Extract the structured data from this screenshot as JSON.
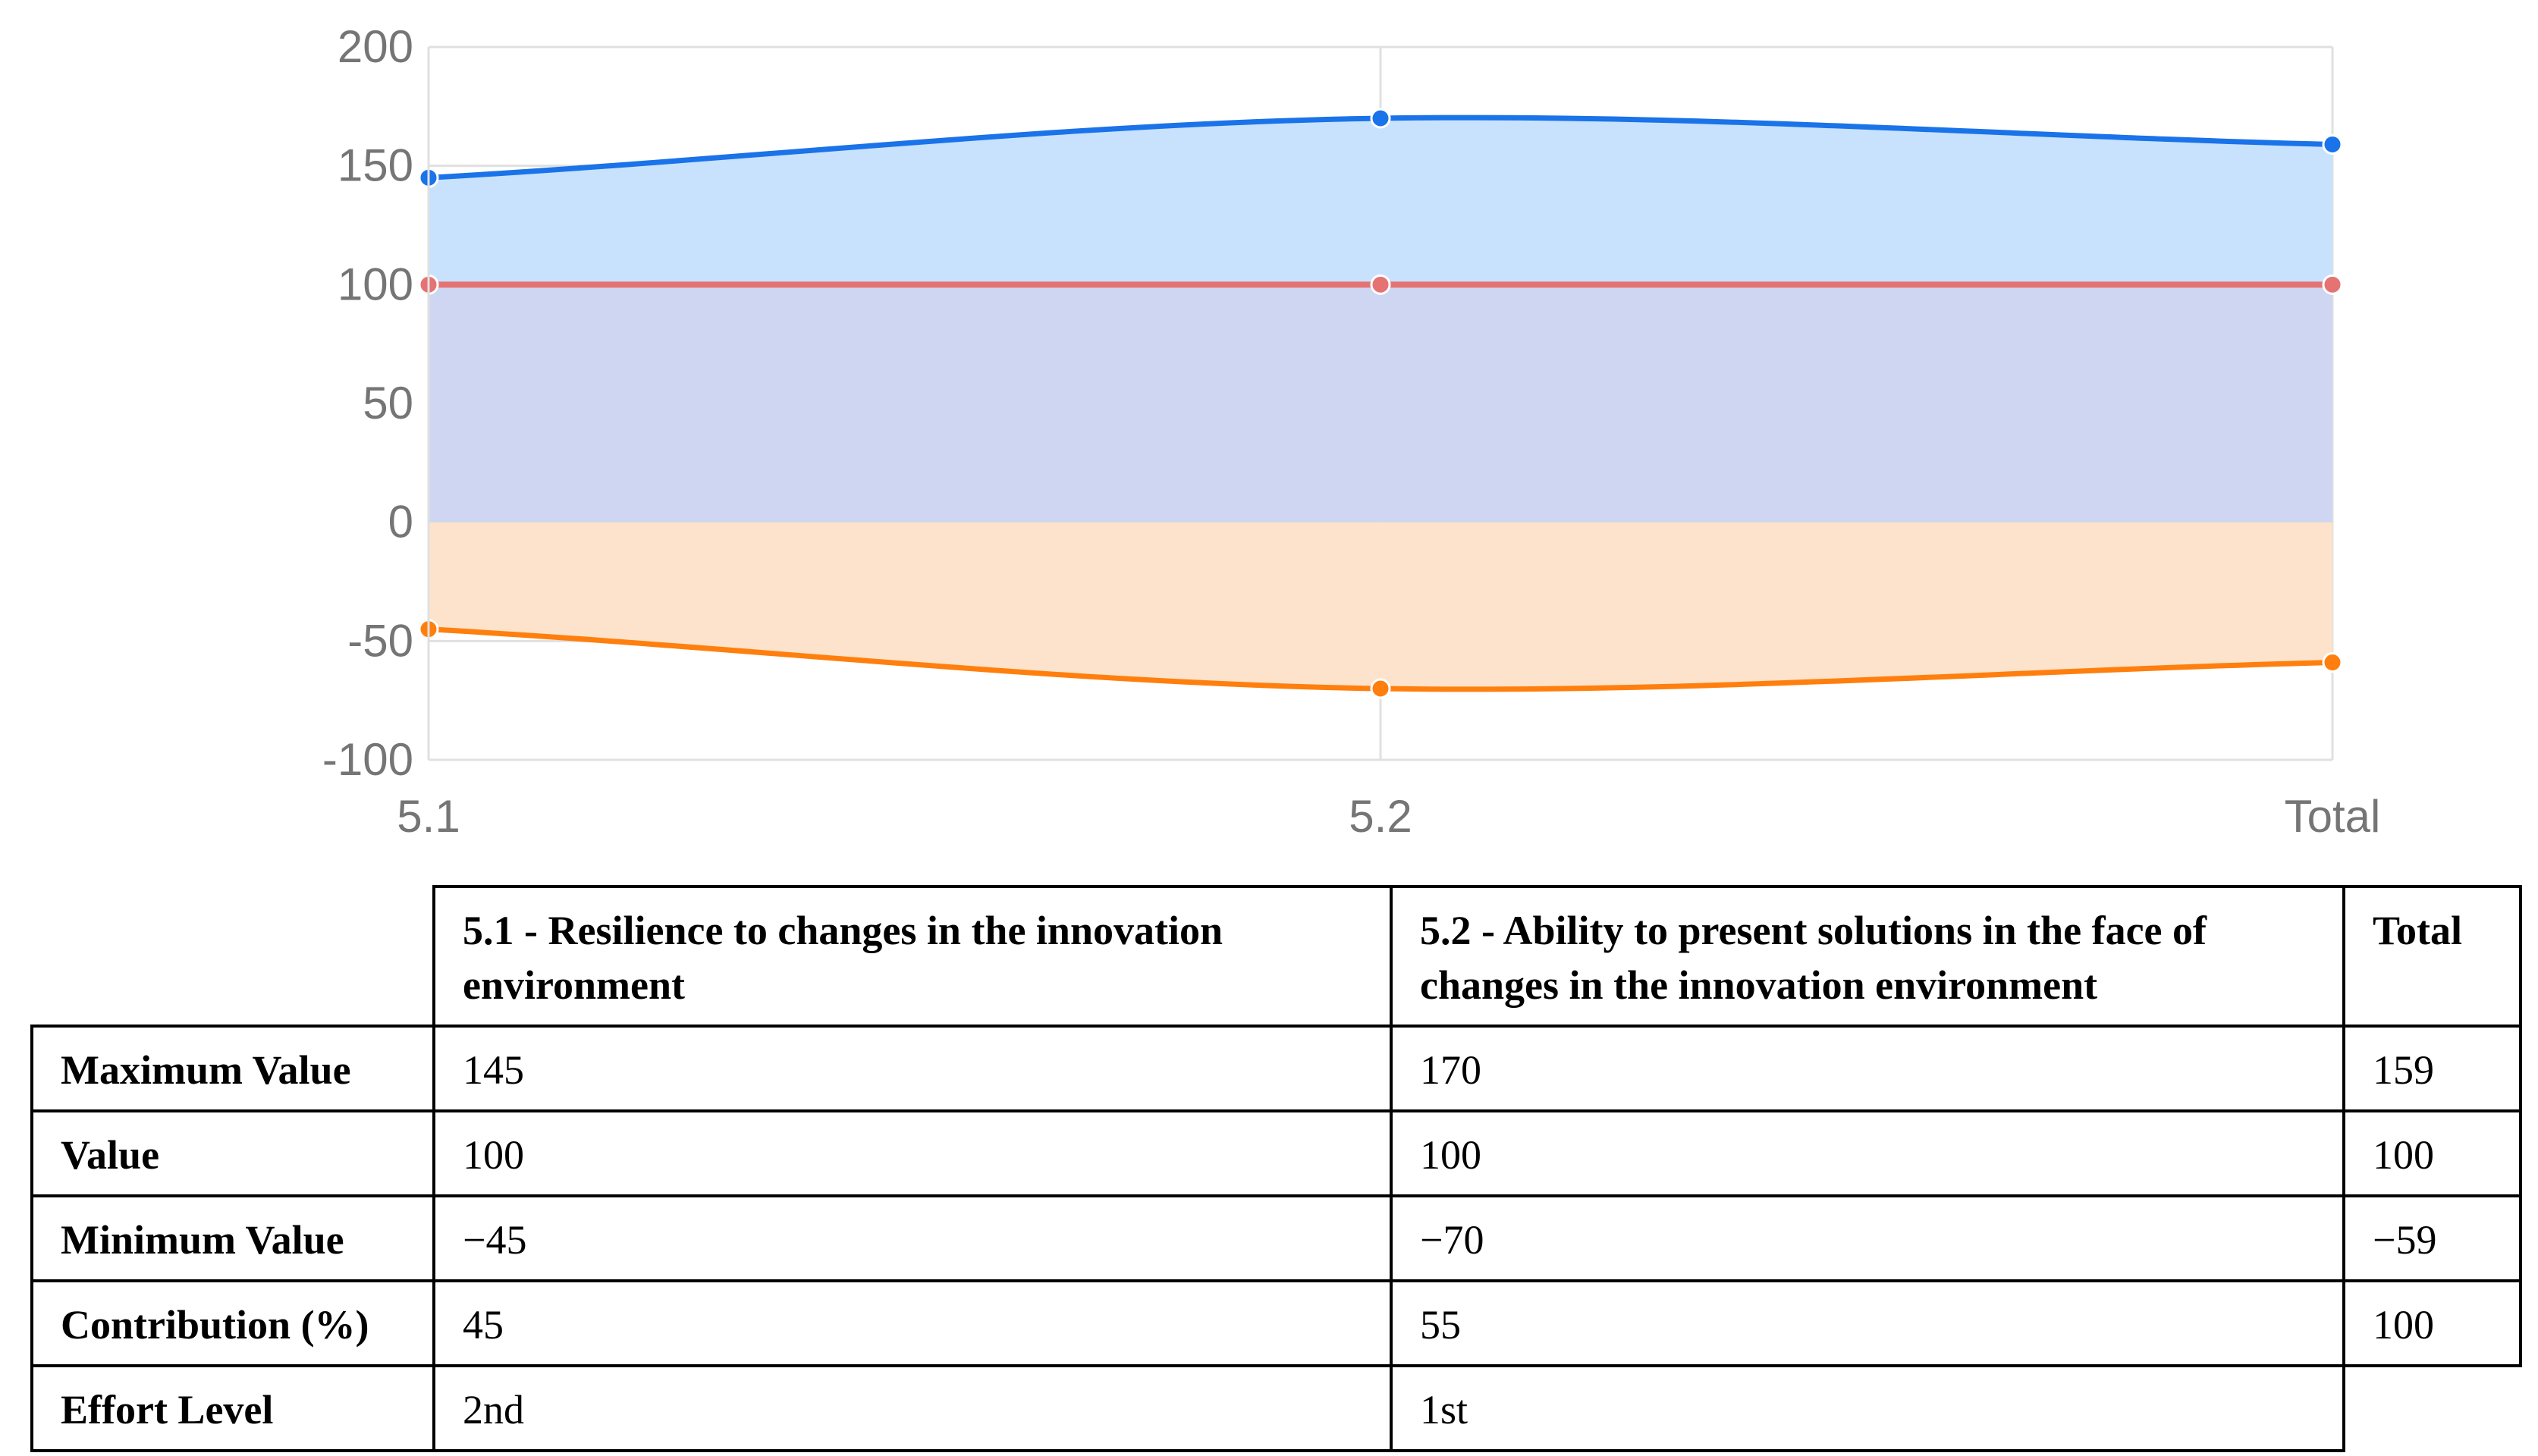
{
  "chart_data": {
    "type": "area",
    "categories": [
      "5.1",
      "5.2",
      "Total"
    ],
    "ylim": [
      -100,
      200
    ],
    "yticks": [
      200,
      150,
      100,
      50,
      0,
      -50,
      -100
    ],
    "grid": true,
    "series": [
      {
        "values": [
          145,
          170,
          159
        ],
        "color": "#1a73e8",
        "fill": "#c8e2fd"
      },
      {
        "values": [
          100,
          100,
          100
        ],
        "color": "#e57373",
        "fill": "#d0d2ec"
      },
      {
        "values": [
          -45,
          -70,
          -59
        ],
        "color": "#ff7f0e",
        "fill": "#fde3cb"
      }
    ]
  },
  "table": {
    "headers": [
      "",
      "5.1 - Resilience to changes in the innovation environment",
      "5.2 - Ability to present solutions in the face of changes in the innovation environment",
      "Total"
    ],
    "rows": [
      {
        "label": "Maximum Value",
        "cells": [
          "145",
          "170",
          "159"
        ]
      },
      {
        "label": "Value",
        "cells": [
          "100",
          "100",
          "100"
        ]
      },
      {
        "label": "Minimum Value",
        "cells": [
          "−45",
          "−70",
          "−59"
        ]
      },
      {
        "label": "Contribution (%)",
        "cells": [
          "45",
          "55",
          "100"
        ]
      },
      {
        "label": "Effort Level",
        "cells": [
          "2nd",
          "1st",
          ""
        ]
      }
    ]
  }
}
